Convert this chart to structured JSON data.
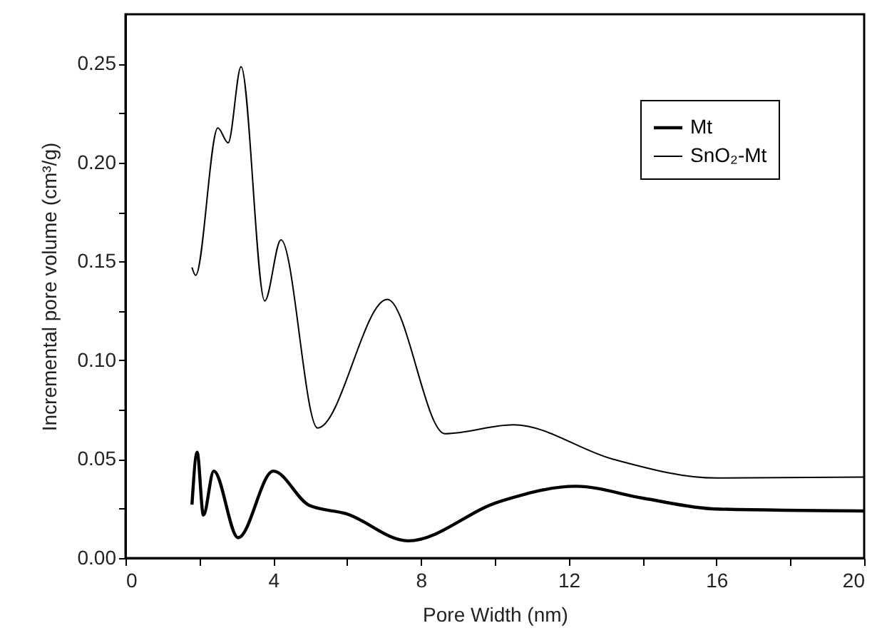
{
  "chart_data": {
    "type": "line",
    "xlabel": "Pore Width (nm)",
    "ylabel": "Incremental pore volume (cm³/g)",
    "xlim": [
      0,
      20
    ],
    "ylim": [
      0,
      0.275
    ],
    "xticks": [
      0,
      {
        "value": 2,
        "label": null
      },
      4,
      {
        "value": 6,
        "label": null
      },
      8,
      {
        "value": 10,
        "label": null
      },
      12,
      {
        "value": 14,
        "label": null
      },
      16,
      {
        "value": 18,
        "label": null
      },
      20
    ],
    "yticks": [
      {
        "value": 0,
        "label": "0.00"
      },
      {
        "value": 0.025,
        "label": null
      },
      {
        "value": 0.05,
        "label": "0.05"
      },
      {
        "value": 0.075,
        "label": null
      },
      {
        "value": 0.1,
        "label": "0.10"
      },
      {
        "value": 0.125,
        "label": null
      },
      {
        "value": 0.15,
        "label": "0.15"
      },
      {
        "value": 0.175,
        "label": null
      },
      {
        "value": 0.2,
        "label": "0.20"
      },
      {
        "value": 0.225,
        "label": null
      },
      {
        "value": 0.25,
        "label": "0.25"
      }
    ],
    "legend": "top right",
    "grid": false,
    "marker": "none",
    "series": [
      {
        "name": "Mt",
        "color": "#000000",
        "x": [
          1.8,
          1.94,
          2.11,
          2.39,
          3.05,
          4.0,
          4.97,
          5.98,
          7.65,
          10.1,
          12.2,
          14,
          16,
          20
        ],
        "values": [
          0.027,
          0.0535,
          0.0217,
          0.044,
          0.0103,
          0.044,
          0.0267,
          0.0224,
          0.0087,
          0.0284,
          0.0363,
          0.0303,
          0.0248,
          0.0238
        ]
      },
      {
        "name": "SnO₂-Mt",
        "color": "#000000",
        "x": [
          1.8,
          1.9,
          2.5,
          2.78,
          3.13,
          3.77,
          4.21,
          5.2,
          7.09,
          8.65,
          10.5,
          13.2,
          16,
          20
        ],
        "values": [
          0.147,
          0.143,
          0.2175,
          0.21,
          0.2485,
          0.13,
          0.161,
          0.0658,
          0.1308,
          0.0629,
          0.0674,
          0.05,
          0.0405,
          0.041
        ]
      }
    ]
  }
}
